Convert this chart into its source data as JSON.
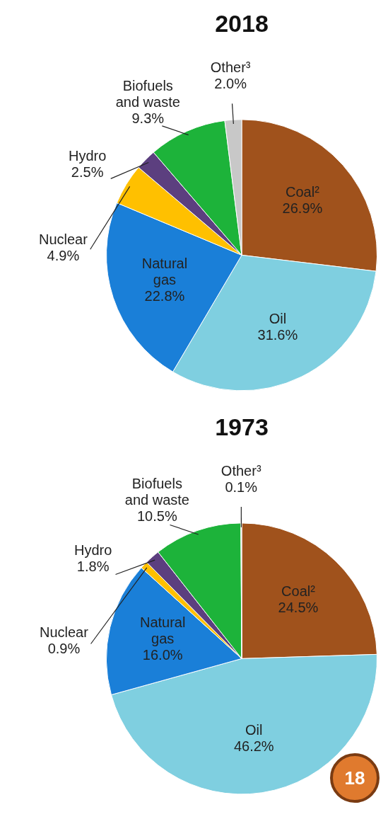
{
  "chart_data": [
    {
      "type": "pie",
      "title": "2018",
      "categories": [
        "Coal²",
        "Oil",
        "Natural gas",
        "Nuclear",
        "Hydro",
        "Biofuels and waste",
        "Other³"
      ],
      "values": [
        26.9,
        31.6,
        22.8,
        4.9,
        2.5,
        9.3,
        2.0
      ],
      "value_labels": [
        "26.9%",
        "31.6%",
        "22.8%",
        "4.9%",
        "2.5%",
        "9.3%",
        "2.0%"
      ],
      "colors": [
        "#a0521c",
        "#7fcfe0",
        "#1a7fd8",
        "#ffc000",
        "#5c3f7f",
        "#1db33a",
        "#c8c8c8"
      ],
      "legend": false
    },
    {
      "type": "pie",
      "title": "1973",
      "categories": [
        "Coal²",
        "Oil",
        "Natural gas",
        "Nuclear",
        "Hydro",
        "Biofuels and waste",
        "Other³"
      ],
      "values": [
        24.5,
        46.2,
        16.0,
        0.9,
        1.8,
        10.5,
        0.1
      ],
      "value_labels": [
        "24.5%",
        "46.2%",
        "16.0%",
        "0.9%",
        "1.8%",
        "10.5%",
        "0.1%"
      ],
      "colors": [
        "#a0521c",
        "#7fcfe0",
        "#1a7fd8",
        "#ffc000",
        "#5c3f7f",
        "#1db33a",
        "#c8c8c8"
      ],
      "legend": false,
      "annotations": [
        "18"
      ]
    }
  ]
}
